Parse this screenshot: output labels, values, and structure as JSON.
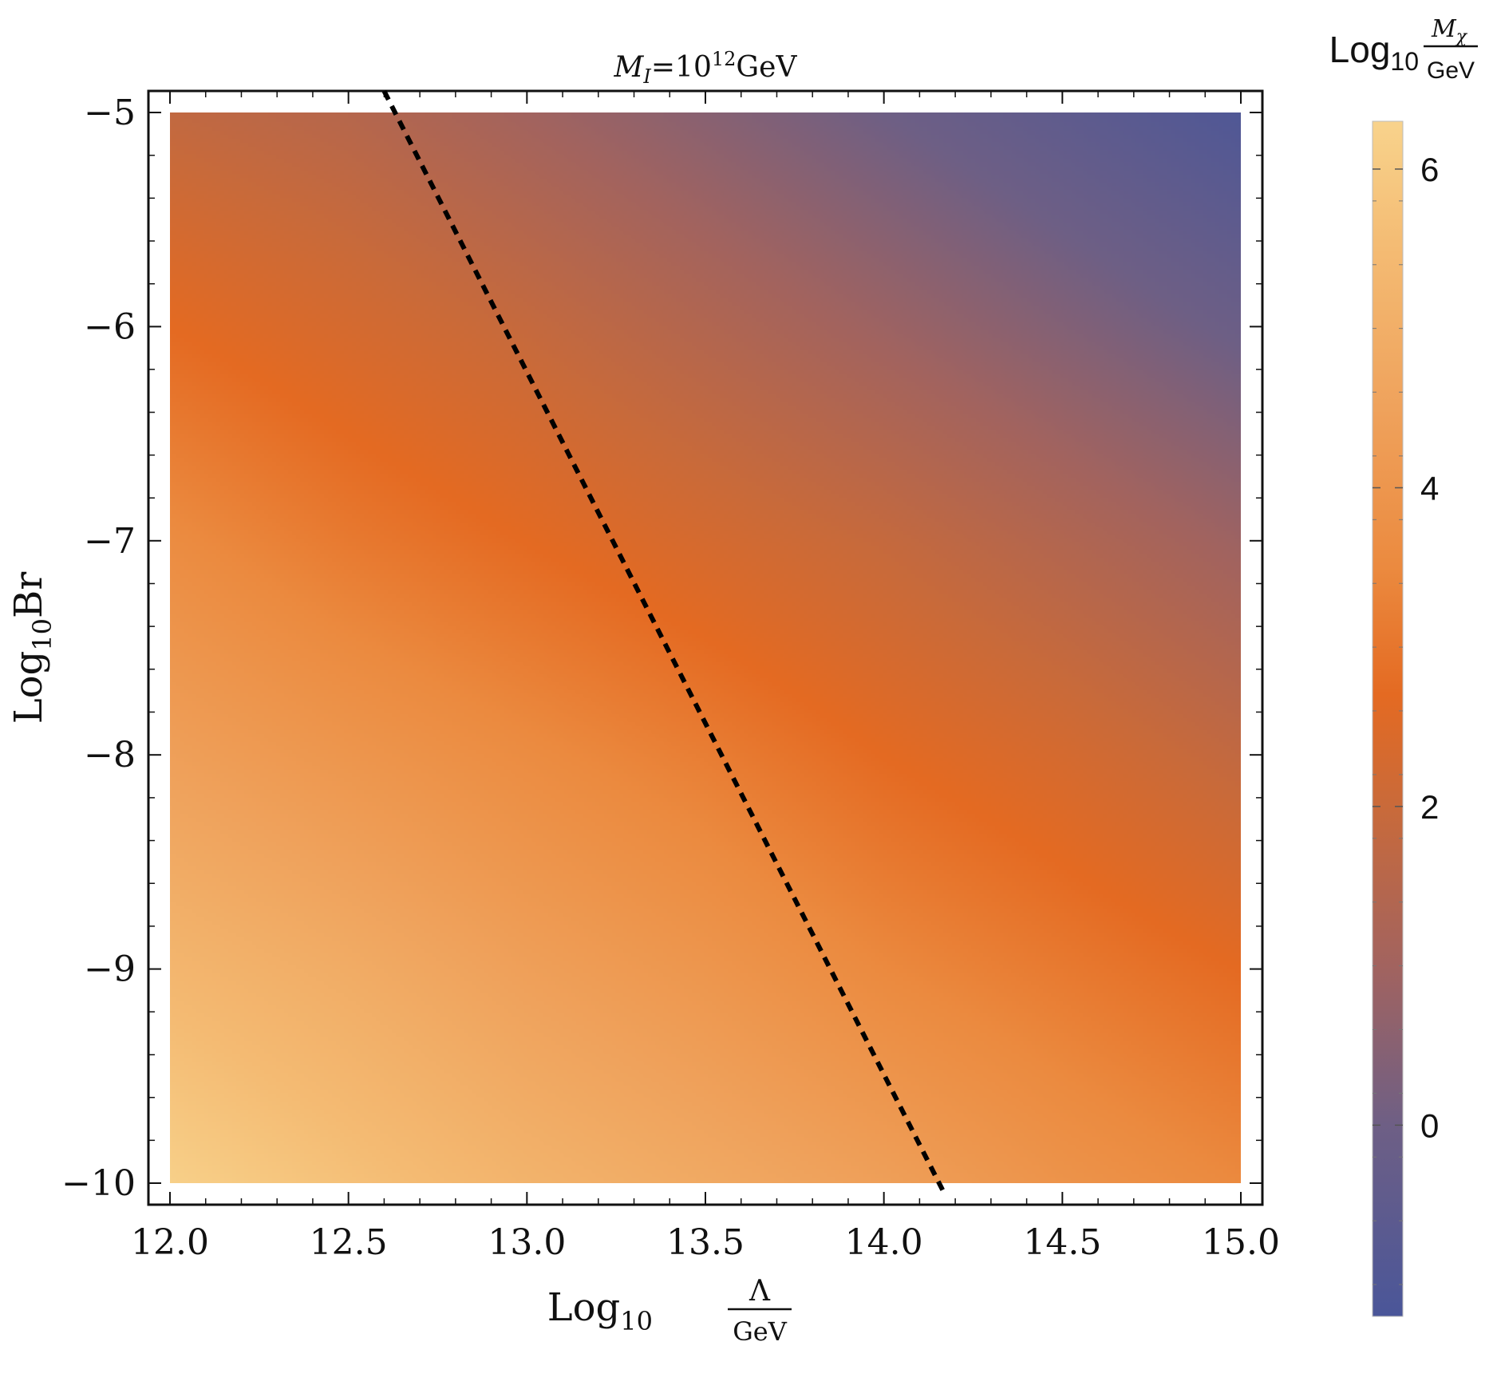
{
  "chart_data": {
    "type": "heatmap",
    "title": {
      "main": "M",
      "main_sub": "I",
      "eq": "=10",
      "sup": "12",
      "unit": "GeV"
    },
    "xlabel": {
      "prefix": "Log",
      "sub": "10",
      "num": "Λ",
      "den": "GeV"
    },
    "ylabel": {
      "prefix": "Log",
      "sub": "10",
      "suffix": "Br"
    },
    "colorbar_label": {
      "prefix": "Log",
      "sub": "10",
      "num_main": "M",
      "num_sub": "χ",
      "den": "GeV"
    },
    "xlim": [
      12.0,
      15.0
    ],
    "ylim": [
      -10,
      -5
    ],
    "x_ticks": [
      "12.0",
      "12.5",
      "13.0",
      "13.5",
      "14.0",
      "14.5",
      "15.0"
    ],
    "x_tick_values": [
      12.0,
      12.5,
      13.0,
      13.5,
      14.0,
      14.5,
      15.0
    ],
    "y_ticks": [
      "-5",
      "-6",
      "-7",
      "-8",
      "-9",
      "-10"
    ],
    "y_tick_values": [
      -5,
      -6,
      -7,
      -8,
      -9,
      -10
    ],
    "color_range": [
      -1.2,
      6.3
    ],
    "colorbar_ticks": [
      "6",
      "4",
      "2",
      "0"
    ],
    "colorbar_tick_values": [
      6,
      4,
      2,
      0
    ],
    "colorscale": [
      {
        "value": -1.2,
        "color": "#4a5699"
      },
      {
        "value": 0.0,
        "color": "#6e5f85"
      },
      {
        "value": 1.0,
        "color": "#a2635f"
      },
      {
        "value": 2.0,
        "color": "#c96a3a"
      },
      {
        "value": 2.7,
        "color": "#e46a22"
      },
      {
        "value": 3.5,
        "color": "#eb8a3f"
      },
      {
        "value": 4.5,
        "color": "#efa25c"
      },
      {
        "value": 5.5,
        "color": "#f4bb73"
      },
      {
        "value": 6.3,
        "color": "#f8d38c"
      }
    ],
    "field_samples": {
      "x": [
        12.0,
        12.5,
        13.0,
        13.5,
        14.0,
        14.5,
        15.0
      ],
      "y": [
        -5,
        -6,
        -7,
        -8,
        -9,
        -10
      ],
      "z": [
        [
          1.8,
          1.5,
          1.0,
          0.5,
          0.0,
          -0.5,
          -1.0
        ],
        [
          2.7,
          2.3,
          1.9,
          1.4,
          0.9,
          0.4,
          -0.1
        ],
        [
          3.6,
          3.1,
          2.7,
          2.3,
          1.9,
          1.4,
          0.9
        ],
        [
          4.4,
          4.0,
          3.6,
          3.2,
          2.7,
          2.3,
          1.8
        ],
        [
          5.3,
          4.9,
          4.4,
          4.0,
          3.5,
          3.1,
          2.7
        ],
        [
          6.2,
          5.7,
          5.2,
          4.8,
          4.4,
          3.9,
          3.5
        ]
      ]
    },
    "dashed_line": {
      "x": [
        12.6,
        14.17
      ],
      "y": [
        -4.9,
        -10.05
      ]
    }
  }
}
